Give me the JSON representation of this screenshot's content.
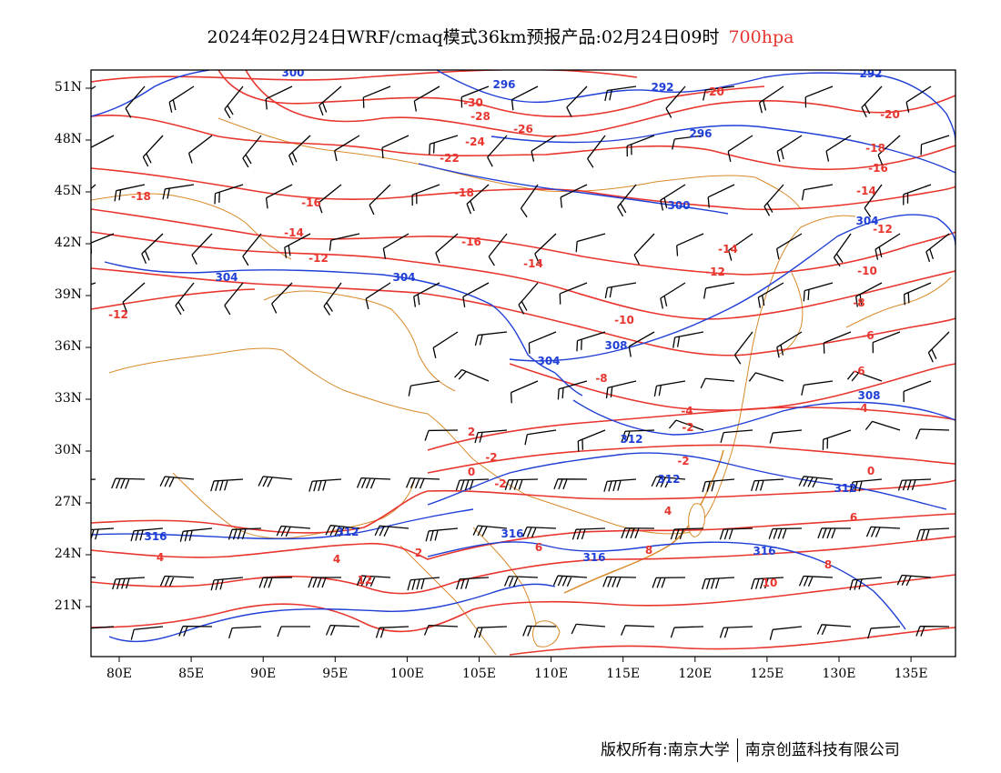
{
  "title": {
    "main": "2024年02月24日WRF/cmaq模式36km预报产品:02月24日09时",
    "level": "700hpa",
    "level_color": "#e8362f"
  },
  "map": {
    "projection": "lat-lon",
    "lon_range": [
      78,
      138
    ],
    "lat_range": [
      18,
      52
    ],
    "lat_ticks": [
      "51N",
      "48N",
      "45N",
      "42N",
      "39N",
      "36N",
      "33N",
      "30N",
      "27N",
      "24N",
      "21N"
    ],
    "lon_ticks": [
      "80E",
      "85E",
      "90E",
      "95E",
      "100E",
      "105E",
      "110E",
      "115E",
      "120E",
      "125E",
      "130E",
      "135E"
    ],
    "colors": {
      "temperature_contours": "#e8362f",
      "geopotential_contours": "#1f3fd6",
      "boundaries": "#d98a2b",
      "wind_barbs": "#000000"
    },
    "temperature_labels": [
      "-30",
      "-28",
      "-26",
      "-24",
      "-22",
      "-20",
      "-20",
      "-18",
      "-18",
      "-18",
      "-16",
      "-16",
      "-16",
      "-14",
      "-14",
      "-14",
      "-14",
      "-12",
      "-12",
      "-12",
      "-12",
      "-10",
      "-10",
      "-8",
      "-8",
      "-6",
      "-6",
      "-4",
      "-4",
      "-2",
      "-2",
      "-2",
      "-2",
      "0",
      "0",
      "2",
      "2",
      "4",
      "4",
      "4",
      "6",
      "6",
      "8",
      "8",
      "10",
      "12"
    ],
    "geopotential_labels": [
      "300",
      "296",
      "292",
      "292",
      "296",
      "300",
      "304",
      "304",
      "304",
      "304",
      "308",
      "308",
      "312",
      "312",
      "312",
      "312",
      "316",
      "316",
      "316",
      "316"
    ]
  },
  "footer": {
    "left": "版权所有:南京大学",
    "right": "南京创蓝科技有限公司"
  }
}
